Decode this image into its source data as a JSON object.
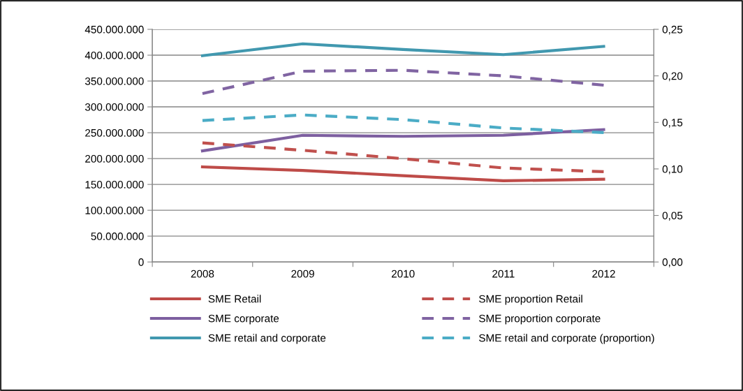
{
  "chart_data": {
    "type": "line",
    "categories": [
      "2008",
      "2009",
      "2010",
      "2011",
      "2012"
    ],
    "series": [
      {
        "name": "SME Retail",
        "color": "#be4b48",
        "line_style": "solid",
        "values": [
          184000000,
          177000000,
          167000000,
          157000000,
          160000000
        ]
      },
      {
        "name": "SME corporate",
        "color": "#7d5fa0",
        "line_style": "solid",
        "values": [
          215000000,
          245000000,
          243000000,
          245000000,
          256000000
        ]
      },
      {
        "name": "SME retail and corporate",
        "color": "#4198af",
        "line_style": "solid",
        "values": [
          399000000,
          422000000,
          411000000,
          401000000,
          417000000
        ]
      },
      {
        "name": "SME proportion Retail",
        "color": "#c0504d",
        "line_style": "dashed",
        "axis": "y2",
        "values": [
          0.128,
          0.12,
          0.111,
          0.101,
          0.097
        ]
      },
      {
        "name": "SME proportion corporate",
        "color": "#8064a2",
        "line_style": "dashed",
        "axis": "y2",
        "values": [
          0.181,
          0.205,
          0.206,
          0.2,
          0.19
        ]
      },
      {
        "name": "SME retail and corporate (proportion)",
        "color": "#4bacc6",
        "line_style": "dashed",
        "axis": "y2",
        "values": [
          0.152,
          0.158,
          0.153,
          0.144,
          0.139
        ]
      }
    ],
    "ylim": [
      0,
      450000000
    ],
    "yticks": [
      {
        "value": 0,
        "label": "0"
      },
      {
        "value": 50000000,
        "label": "50.000.000"
      },
      {
        "value": 100000000,
        "label": "100.000.000"
      },
      {
        "value": 150000000,
        "label": "150.000.000"
      },
      {
        "value": 200000000,
        "label": "200.000.000"
      },
      {
        "value": 250000000,
        "label": "250.000.000"
      },
      {
        "value": 300000000,
        "label": "300.000.000"
      },
      {
        "value": 350000000,
        "label": "350.000.000"
      },
      {
        "value": 400000000,
        "label": "400.000.000"
      },
      {
        "value": 450000000,
        "label": "450.000.000"
      }
    ],
    "y2lim": [
      0,
      0.25
    ],
    "y2ticks": [
      {
        "value": 0,
        "label": "0,00"
      },
      {
        "value": 0.05,
        "label": "0,05"
      },
      {
        "value": 0.1,
        "label": "0,10"
      },
      {
        "value": 0.15,
        "label": "0,15"
      },
      {
        "value": 0.2,
        "label": "0,20"
      },
      {
        "value": 0.25,
        "label": "0,25"
      }
    ],
    "grid": "y",
    "legend": "bottom",
    "marker": "none"
  }
}
